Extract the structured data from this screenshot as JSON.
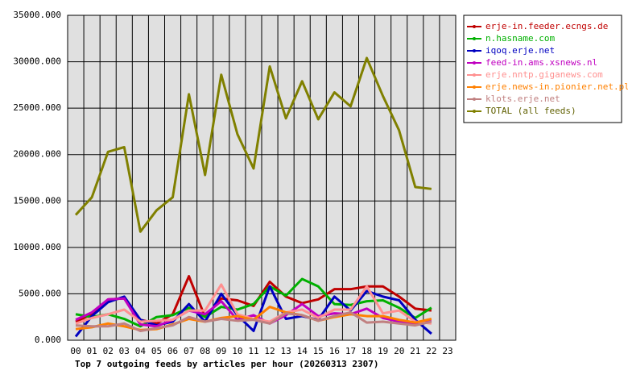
{
  "chart_data": {
    "type": "line",
    "title": "Top 7 outgoing feeds by articles per hour (20260313 2307)",
    "categories": [
      "00",
      "01",
      "02",
      "03",
      "04",
      "05",
      "06",
      "07",
      "08",
      "09",
      "10",
      "11",
      "12",
      "13",
      "14",
      "15",
      "16",
      "17",
      "18",
      "19",
      "20",
      "21",
      "22",
      "23"
    ],
    "ylim": [
      0,
      35000
    ],
    "yticks": [
      {
        "value": 0,
        "label": "0.000"
      },
      {
        "value": 5000,
        "label": "5000.000"
      },
      {
        "value": 10000,
        "label": "10000.000"
      },
      {
        "value": 15000,
        "label": "15000.000"
      },
      {
        "value": 20000,
        "label": "20000.000"
      },
      {
        "value": 25000,
        "label": "25000.000"
      },
      {
        "value": 30000,
        "label": "30000.000"
      },
      {
        "value": 35000,
        "label": "35000.000"
      }
    ],
    "grid": true,
    "legend": "right",
    "series": [
      {
        "name": "erje-in.feeder.ecngs.de",
        "color": "#c00000",
        "values": [
          2000,
          2800,
          4400,
          4500,
          2200,
          1800,
          2800,
          6900,
          2500,
          4500,
          4300,
          3700,
          6300,
          4700,
          4000,
          4400,
          5500,
          5500,
          5800,
          5800,
          4700,
          3400,
          3200,
          null
        ]
      },
      {
        "name": "n.hasname.com",
        "color": "#00b000",
        "values": [
          2800,
          2500,
          2800,
          2300,
          1500,
          2500,
          2700,
          3500,
          2500,
          3600,
          3300,
          3900,
          5800,
          4800,
          6600,
          5800,
          3900,
          3800,
          4200,
          4300,
          3500,
          2400,
          3500,
          null
        ]
      },
      {
        "name": "iqoq.erje.net",
        "color": "#0000c0",
        "values": [
          400,
          2600,
          4100,
          4700,
          2200,
          1600,
          2000,
          3900,
          2000,
          5000,
          2700,
          1000,
          5800,
          2300,
          2600,
          2200,
          4700,
          3200,
          5300,
          4700,
          4300,
          2200,
          700,
          null
        ]
      },
      {
        "name": "feed-in.ams.xsnews.nl",
        "color": "#c000c0",
        "values": [
          2200,
          3000,
          4400,
          4500,
          1700,
          1500,
          2200,
          3200,
          2800,
          4200,
          2200,
          2700,
          1800,
          2700,
          3900,
          2600,
          2900,
          2800,
          3400,
          2400,
          2000,
          1800,
          2100,
          null
        ]
      },
      {
        "name": "erje.nntp.giganews.com",
        "color": "#ff9090",
        "values": [
          1800,
          2400,
          2800,
          3300,
          2000,
          2100,
          2200,
          3200,
          3200,
          6000,
          2800,
          2300,
          2000,
          3000,
          3300,
          2400,
          3300,
          3300,
          5800,
          2900,
          3200,
          2000,
          1800,
          null
        ]
      },
      {
        "name": "erje.news-in.pionier.net.pl",
        "color": "#ff8000",
        "values": [
          1200,
          1400,
          1800,
          1500,
          1100,
          1200,
          1700,
          2300,
          2000,
          2400,
          2600,
          2200,
          3600,
          3000,
          2700,
          2100,
          2500,
          2800,
          2600,
          2600,
          2200,
          1900,
          2300,
          null
        ]
      },
      {
        "name": "klots.erje.net",
        "color": "#c08080",
        "values": [
          1600,
          1500,
          1500,
          1800,
          1000,
          1300,
          1600,
          2500,
          2000,
          2300,
          2100,
          2200,
          1800,
          2900,
          2700,
          2100,
          2600,
          3000,
          1900,
          2000,
          1800,
          1600,
          2000,
          null
        ]
      },
      {
        "name": "TOTAL (all feeds)",
        "color": "#808000",
        "values": [
          13500,
          15400,
          20300,
          20800,
          11700,
          14000,
          15400,
          26500,
          17800,
          28600,
          22200,
          18500,
          29500,
          23900,
          27900,
          23800,
          26700,
          25200,
          30400,
          26300,
          22600,
          16500,
          16300,
          null
        ]
      }
    ]
  }
}
